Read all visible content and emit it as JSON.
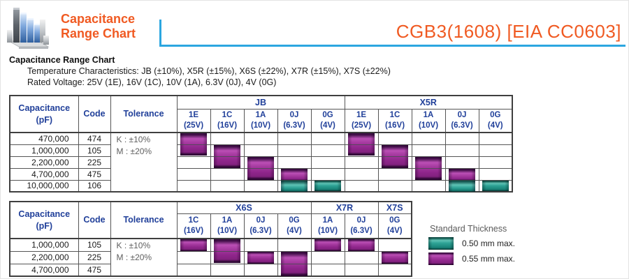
{
  "header": {
    "logo_title": "Capacitance\nRange Chart",
    "part_number": "CGB3(1608) [EIA CC0603]"
  },
  "intro": {
    "heading": "Capacitance Range Chart",
    "temperature_characteristics": "Temperature Characteristics: JB (±10%), X5R (±15%), X6S (±22%), X7R (±15%), X7S (±22%)",
    "rated_voltage": "Rated Voltage: 25V (1E), 16V (1C), 10V (1A), 6.3V (0J), 4V (0G)"
  },
  "colors": {
    "accent_orange": "#F05A22",
    "line_blue": "#2CA6E0",
    "header_navy": "#21409A",
    "body_text": "#1A1A1A",
    "tolerance_gray": "#5F5F5F",
    "table_border": "#3F3F3F",
    "chip_purple": "#9E2F98",
    "chip_teal": "#23968B"
  },
  "table1": {
    "headers": {
      "capacitance": "Capacitance\n(pF)",
      "code": "Code",
      "tolerance": "Tolerance"
    },
    "groups": [
      {
        "name": "JB",
        "cols": [
          {
            "code": "1E",
            "volt": "(25V)"
          },
          {
            "code": "1C",
            "volt": "(16V)"
          },
          {
            "code": "1A",
            "volt": "(10V)"
          },
          {
            "code": "0J",
            "volt": "(6.3V)"
          },
          {
            "code": "0G",
            "volt": "(4V)"
          }
        ]
      },
      {
        "name": "X5R",
        "cols": [
          {
            "code": "1E",
            "volt": "(25V)"
          },
          {
            "code": "1C",
            "volt": "(16V)"
          },
          {
            "code": "1A",
            "volt": "(10V)"
          },
          {
            "code": "0J",
            "volt": "(6.3V)"
          },
          {
            "code": "0G",
            "volt": "(4V)"
          }
        ]
      }
    ],
    "tolerance_lines": [
      "K : ±10%",
      "M : ±20%"
    ],
    "rows": [
      {
        "capacitance": "470,000",
        "code": "474"
      },
      {
        "capacitance": "1,000,000",
        "code": "105"
      },
      {
        "capacitance": "2,200,000",
        "code": "225"
      },
      {
        "capacitance": "4,700,000",
        "code": "475"
      },
      {
        "capacitance": "10,000,000",
        "code": "106"
      }
    ]
  },
  "table2": {
    "headers": {
      "capacitance": "Capacitance\n(pF)",
      "code": "Code",
      "tolerance": "Tolerance"
    },
    "groups": [
      {
        "name": "X6S",
        "cols": [
          {
            "code": "1C",
            "volt": "(16V)"
          },
          {
            "code": "1A",
            "volt": "(10V)"
          },
          {
            "code": "0J",
            "volt": "(6.3V)"
          },
          {
            "code": "0G",
            "volt": "(4V)"
          }
        ]
      },
      {
        "name": "X7R",
        "cols": [
          {
            "code": "1A",
            "volt": "(10V)"
          },
          {
            "code": "0J",
            "volt": "(6.3V)"
          }
        ]
      },
      {
        "name": "X7S",
        "cols": [
          {
            "code": "0G",
            "volt": "(4V)"
          }
        ]
      }
    ],
    "tolerance_lines": [
      "K : ±10%",
      "M : ±20%"
    ],
    "rows": [
      {
        "capacitance": "1,000,000",
        "code": "105"
      },
      {
        "capacitance": "2,200,000",
        "code": "225"
      },
      {
        "capacitance": "4,700,000",
        "code": "475"
      }
    ]
  },
  "chips": [
    {
      "cell": "t1-c0-r0",
      "span": 2,
      "style": "purple",
      "range": "JB 1E 470,000–1,000,000 pF"
    },
    {
      "cell": "t1-c1-r1",
      "span": 2,
      "style": "purple",
      "range": "JB 1C 1,000,000–2,200,000 pF"
    },
    {
      "cell": "t1-c2-r2",
      "span": 2,
      "style": "purple",
      "range": "JB 1A 2,200,000–4,700,000 pF"
    },
    {
      "cell": "t1-c3-r3",
      "span": 2,
      "style": "purple-teal",
      "range": "JB 0J 4,700,000–10,000,000 pF"
    },
    {
      "cell": "t1-c4-r4",
      "span": 1,
      "style": "teal",
      "range": "JB 0G 10,000,000 pF"
    },
    {
      "cell": "t1-c5-r0",
      "span": 2,
      "style": "purple",
      "range": "X5R 1E 470,000–1,000,000 pF"
    },
    {
      "cell": "t1-c6-r1",
      "span": 2,
      "style": "purple",
      "range": "X5R 1C 1,000,000–2,200,000 pF"
    },
    {
      "cell": "t1-c7-r2",
      "span": 2,
      "style": "purple",
      "range": "X5R 1A 2,200,000–4,700,000 pF"
    },
    {
      "cell": "t1-c8-r3",
      "span": 2,
      "style": "purple-teal",
      "range": "X5R 0J 4,700,000–10,000,000 pF"
    },
    {
      "cell": "t1-c9-r4",
      "span": 1,
      "style": "teal",
      "range": "X5R 0G 10,000,000 pF"
    },
    {
      "cell": "t2-c0-r0",
      "span": 1,
      "style": "purple",
      "range": "X6S 1C 1,000,000 pF"
    },
    {
      "cell": "t2-c1-r0",
      "span": 2,
      "style": "purple",
      "range": "X6S 1A 1,000,000–2,200,000 pF"
    },
    {
      "cell": "t2-c2-r1",
      "span": 1,
      "style": "purple",
      "range": "X6S 0J 2,200,000 pF"
    },
    {
      "cell": "t2-c3-r1",
      "span": 2,
      "style": "purple",
      "range": "X6S 0G 2,200,000–4,700,000 pF"
    },
    {
      "cell": "t2-c4-r0",
      "span": 1,
      "style": "purple",
      "range": "X7R 1A 1,000,000 pF"
    },
    {
      "cell": "t2-c5-r0",
      "span": 1,
      "style": "purple",
      "range": "X7R 0J 1,000,000 pF"
    },
    {
      "cell": "t2-c6-r1",
      "span": 1,
      "style": "purple",
      "range": "X7S 0G 2,200,000 pF"
    }
  ],
  "legend": {
    "title": "Standard Thickness",
    "items": [
      {
        "label": "0.50 mm max.",
        "style": "teal"
      },
      {
        "label": "0.55 mm max.",
        "style": "purple"
      }
    ]
  }
}
